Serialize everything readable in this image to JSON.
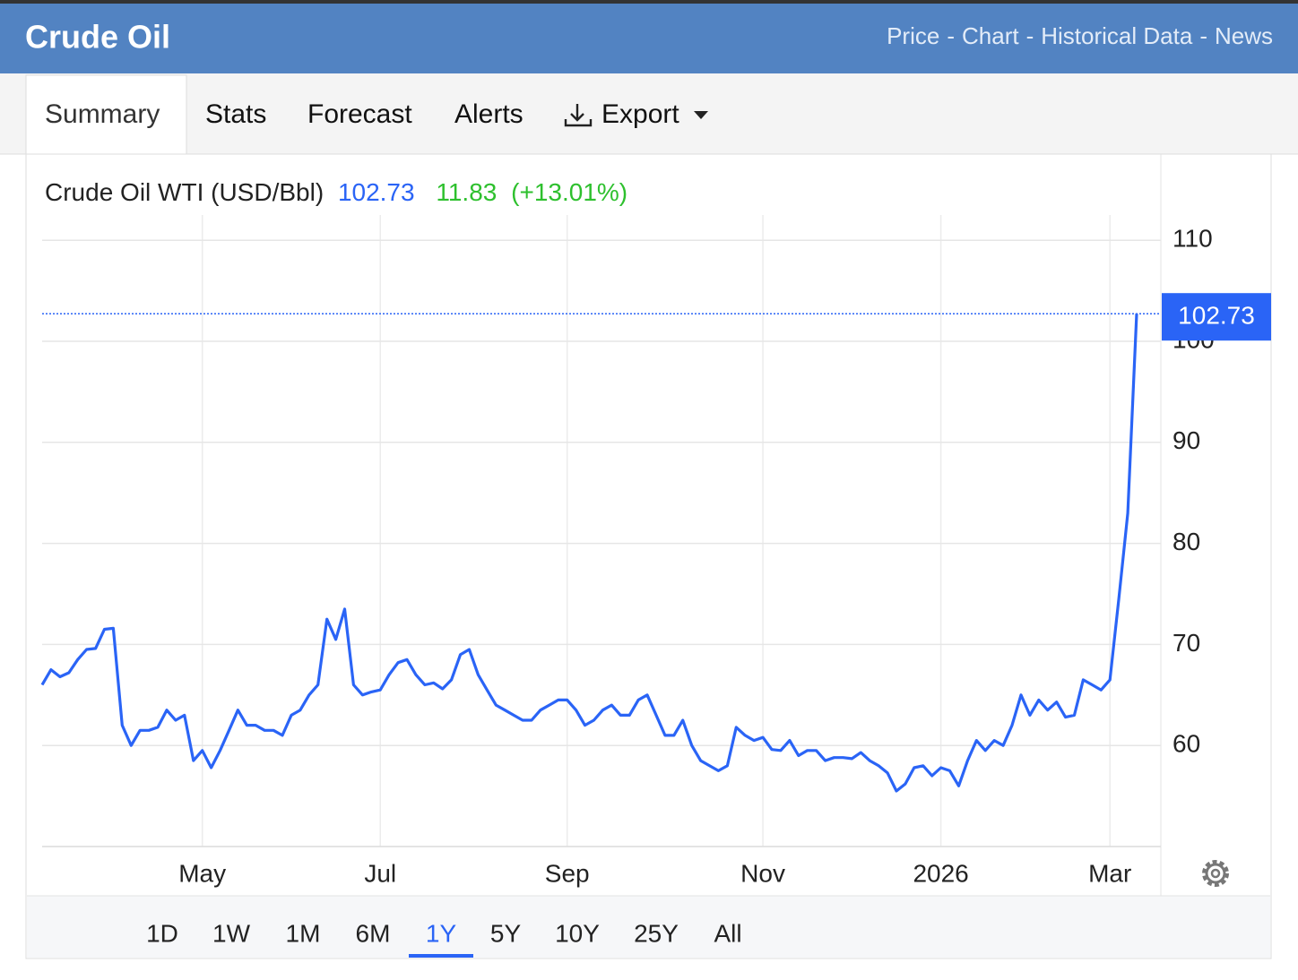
{
  "header": {
    "title": "Crude Oil",
    "nav": [
      "Price",
      "Chart",
      "Historical Data",
      "News"
    ],
    "nav_separator": "-"
  },
  "tabs": [
    "Summary",
    "Stats",
    "Forecast",
    "Alerts",
    "Export"
  ],
  "chart_data": {
    "type": "line",
    "title": "Crude Oil WTI (USD/Bbl)",
    "price": "102.73",
    "change": "11.83",
    "change_pct": "(+13.01%)",
    "color": "#2a64f6",
    "categories": [
      null,
      null,
      null,
      null,
      null,
      null,
      null,
      null,
      null,
      null,
      null,
      null,
      null,
      null,
      null,
      null,
      null,
      null,
      "May",
      null,
      null,
      null,
      null,
      null,
      null,
      null,
      null,
      null,
      null,
      null,
      null,
      null,
      null,
      null,
      null,
      null,
      null,
      null,
      "Jul",
      null,
      null,
      null,
      null,
      null,
      null,
      null,
      null,
      null,
      null,
      null,
      null,
      null,
      null,
      null,
      null,
      null,
      null,
      null,
      null,
      "Sep",
      null,
      null,
      null,
      null,
      null,
      null,
      null,
      null,
      null,
      null,
      null,
      null,
      null,
      null,
      null,
      null,
      null,
      null,
      null,
      null,
      null,
      "Nov",
      null,
      null,
      null,
      null,
      null,
      null,
      null,
      null,
      null,
      null,
      null,
      null,
      null,
      null,
      null,
      null,
      null,
      null,
      null,
      "2026",
      null,
      null,
      null,
      null,
      null,
      null,
      null,
      null,
      null,
      null,
      null,
      null,
      null,
      null,
      null,
      null,
      null,
      null,
      "Mar",
      null,
      null,
      null
    ],
    "values": [
      66,
      67.5,
      66.8,
      67.2,
      68.5,
      69.5,
      69.6,
      71.5,
      71.6,
      62,
      60,
      61.5,
      61.5,
      61.8,
      63.5,
      62.5,
      63,
      58.5,
      59.5,
      57.8,
      59.5,
      61.5,
      63.5,
      62,
      62,
      61.5,
      61.5,
      61,
      63,
      63.5,
      65,
      66,
      72.5,
      70.5,
      73.5,
      66,
      65,
      65.3,
      65.5,
      67,
      68.2,
      68.5,
      67,
      66,
      66.2,
      65.6,
      66.5,
      69,
      69.5,
      67,
      65.5,
      64,
      63.5,
      63,
      62.5,
      62.5,
      63.5,
      64,
      64.5,
      64.5,
      63.5,
      62,
      62.5,
      63.5,
      64,
      63,
      63,
      64.5,
      65,
      63,
      61,
      61,
      62.5,
      60,
      58.5,
      58,
      57.5,
      58,
      61.8,
      61,
      60.5,
      60.8,
      59.6,
      59.5,
      60.5,
      59,
      59.5,
      59.5,
      58.5,
      58.8,
      58.8,
      58.7,
      59.3,
      58.5,
      58,
      57.3,
      55.5,
      56.2,
      57.8,
      58,
      57,
      57.8,
      57.5,
      56,
      58.5,
      60.5,
      59.5,
      60.5,
      60,
      62,
      65,
      63,
      64.5,
      63.5,
      64.3,
      62.8,
      63,
      66.5,
      66,
      65.5,
      66.5,
      74.5,
      83,
      102.73
    ],
    "ylim": [
      50,
      112.5
    ],
    "yticks": [
      60,
      70,
      80,
      90,
      100,
      110
    ],
    "grid": true
  },
  "ranges": [
    "1D",
    "1W",
    "1M",
    "6M",
    "1Y",
    "5Y",
    "10Y",
    "25Y",
    "All"
  ],
  "active_range_index": 4
}
